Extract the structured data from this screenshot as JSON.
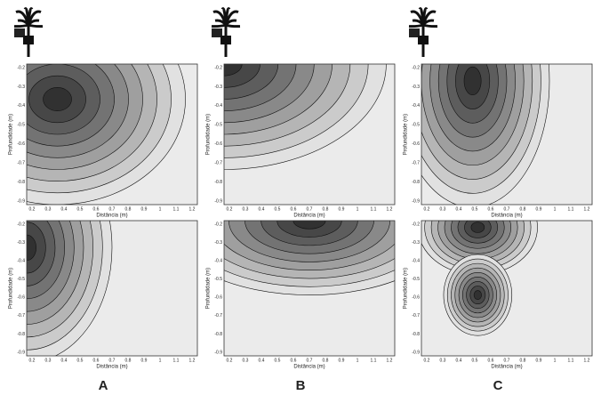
{
  "panels": [
    {
      "label": "A"
    },
    {
      "label": "B"
    },
    {
      "label": "C"
    }
  ],
  "plots": [
    {
      "x_label": "Distância (m)",
      "y_label": "Profundidade (m)",
      "x_ticks": [
        "0.2",
        "0.3",
        "0.4",
        "0.5",
        "0.6",
        "0.7",
        "0.8",
        "0.9",
        "1",
        "1.1",
        "1.2"
      ],
      "y_ticks": [
        "-0.2",
        "-0.3",
        "-0.4",
        "-0.5",
        "-0.6",
        "-0.7",
        "-0.8",
        "-0.9"
      ]
    },
    {
      "x_label": "Distância (m)",
      "y_label": "Profundidade (m)",
      "x_ticks": [
        "0.2",
        "0.3",
        "0.4",
        "0.5",
        "0.6",
        "0.7",
        "0.8",
        "0.9",
        "1",
        "1.1",
        "1.2"
      ],
      "y_ticks": [
        "-0.2",
        "-0.3",
        "-0.4",
        "-0.5",
        "-0.6",
        "-0.7",
        "-0.8",
        "-0.9"
      ]
    },
    {
      "x_label": "Distância (m)",
      "y_label": "Profundidade (m)",
      "x_ticks": [
        "0.2",
        "0.3",
        "0.4",
        "0.5",
        "0.6",
        "0.7",
        "0.8",
        "0.9",
        "1",
        "1.1",
        "1.2"
      ],
      "y_ticks": [
        "-0.2",
        "-0.3",
        "-0.4",
        "-0.5",
        "-0.6",
        "-0.7",
        "-0.8",
        "-0.9"
      ]
    },
    {
      "x_label": "Distância (m)",
      "y_label": "Profundidade (m)",
      "x_ticks": [
        "0.2",
        "0.3",
        "0.4",
        "0.5",
        "0.6",
        "0.7",
        "0.8",
        "0.9",
        "1",
        "1.1",
        "1.2"
      ],
      "y_ticks": [
        "-0.2",
        "-0.3",
        "-0.4",
        "-0.5",
        "-0.6",
        "-0.7",
        "-0.8",
        "-0.9"
      ]
    },
    {
      "x_label": "Distância (m)",
      "y_label": "Profundidade (m)",
      "x_ticks": [
        "0.2",
        "0.3",
        "0.4",
        "0.5",
        "0.6",
        "0.7",
        "0.8",
        "0.9",
        "1",
        "1.1",
        "1.2"
      ],
      "y_ticks": [
        "-0.2",
        "-0.3",
        "-0.4",
        "-0.5",
        "-0.6",
        "-0.7",
        "-0.8",
        "-0.9"
      ]
    },
    {
      "x_label": "Distância (m)",
      "y_label": "Profundidade (m)",
      "x_ticks": [
        "0.2",
        "0.3",
        "0.4",
        "0.5",
        "0.6",
        "0.7",
        "0.8",
        "0.9",
        "1",
        "1.1",
        "1.2"
      ],
      "y_ticks": [
        "-0.2",
        "-0.3",
        "-0.4",
        "-0.5",
        "-0.6",
        "-0.7",
        "-0.8",
        "-0.9"
      ]
    }
  ]
}
